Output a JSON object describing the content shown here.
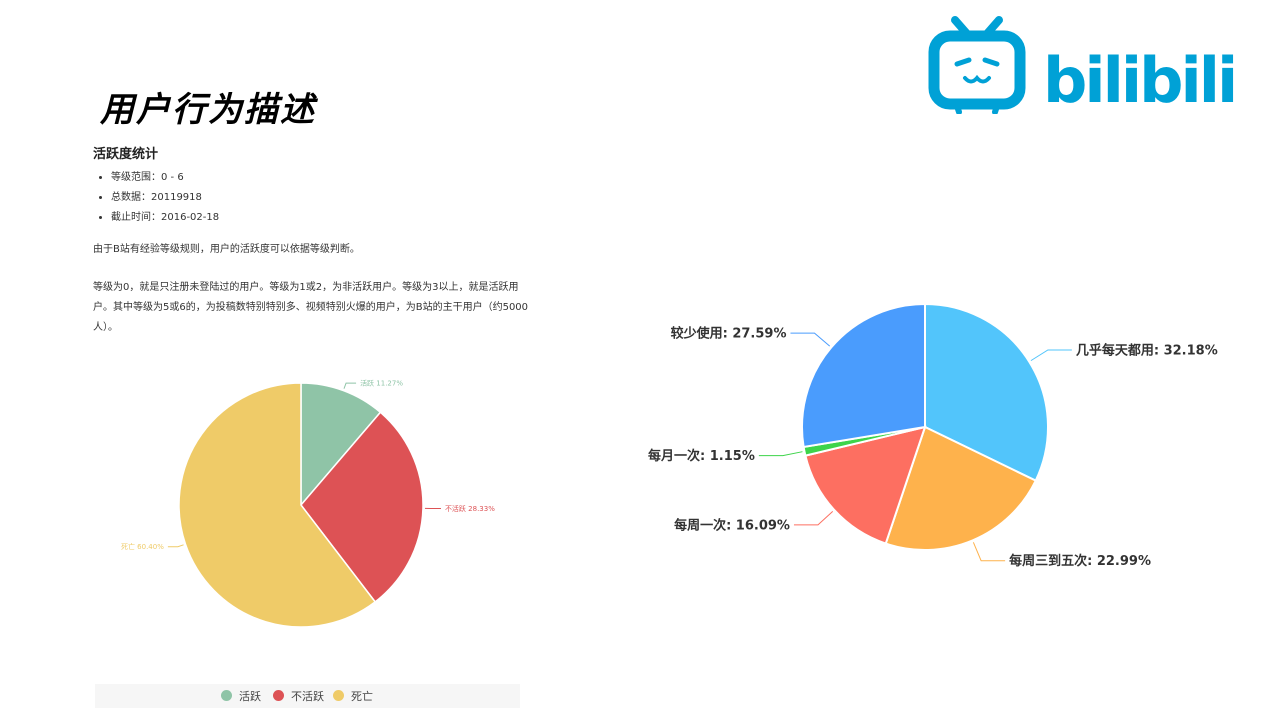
{
  "page": {
    "title": "用户行为描述"
  },
  "logo": {
    "text": "bilibili"
  },
  "stats": {
    "heading": "活跃度统计",
    "bullets": [
      "等级范围：0 - 6",
      "总数据：20119918",
      "截止时间：2016-02-18"
    ],
    "paragraph1": "由于B站有经验等级规则，用户的活跃度可以依据等级判断。",
    "paragraph2": "等级为0，就是只注册未登陆过的用户。等级为1或2，为非活跃用户。等级为3以上，就是活跃用户。其中等级为5或6的，为投稿数特别特别多、视频特别火爆的用户，为B站的主干用户（约5000人）。"
  },
  "colors": {
    "brand": "#00a1d6"
  },
  "chart_data": [
    {
      "type": "pie",
      "title": "",
      "categories": [
        "活跃",
        "不活跃",
        "死亡"
      ],
      "values": [
        11.27,
        28.33,
        60.4
      ],
      "labels": [
        "活跃 11.27%",
        "不活跃 28.33%",
        "死亡 60.40%"
      ],
      "colors": [
        "#8fc4a7",
        "#dd5255",
        "#efcb68"
      ],
      "legend": {
        "position": "bottom",
        "items": [
          "活跃",
          "不活跃",
          "死亡"
        ]
      }
    },
    {
      "type": "pie",
      "title": "",
      "categories": [
        "几乎每天都用",
        "每周三到五次",
        "每周一次",
        "每月一次",
        "较少使用"
      ],
      "values": [
        32.18,
        22.99,
        16.09,
        1.15,
        27.59
      ],
      "labels": [
        "几乎每天都用: 32.18%",
        "每周三到五次: 22.99%",
        "每周一次: 16.09%",
        "每月一次: 1.15%",
        "较少使用: 27.59%"
      ],
      "colors": [
        "#52c5fb",
        "#feb24c",
        "#fd6f61",
        "#3dd44a",
        "#4a9cfd"
      ]
    }
  ]
}
